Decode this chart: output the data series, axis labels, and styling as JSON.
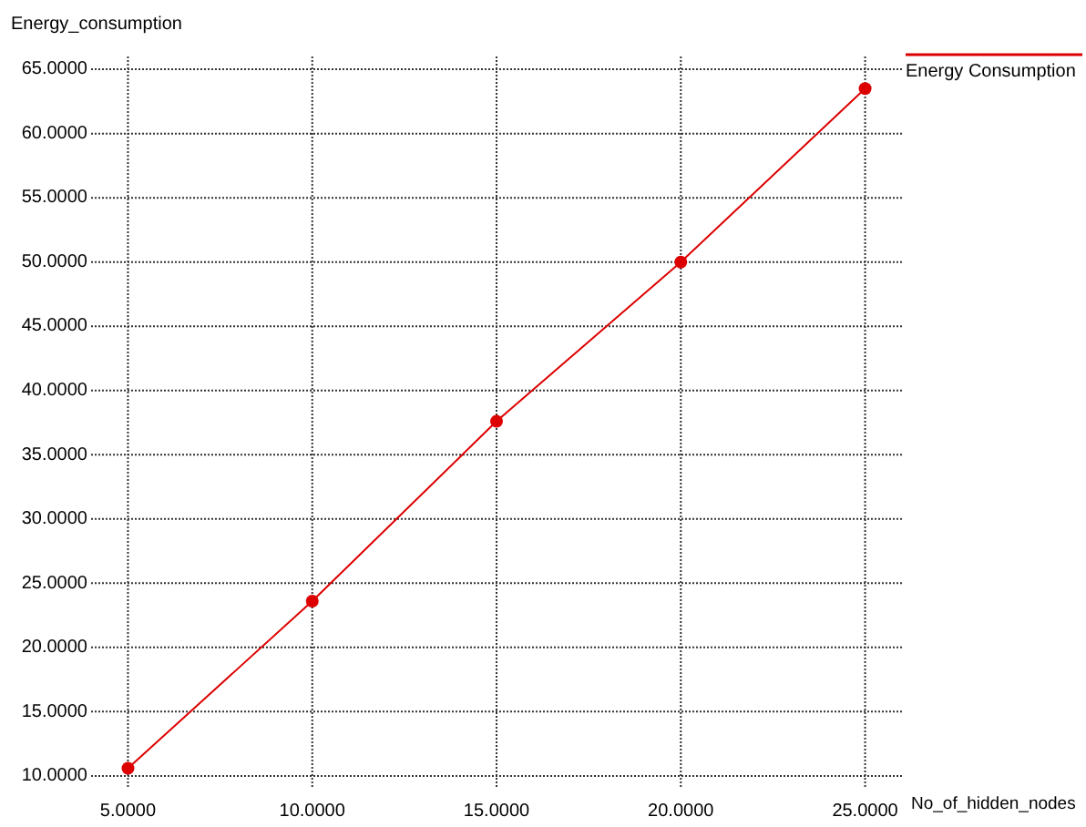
{
  "chart_data": {
    "type": "line",
    "xlabel": "No_of_hidden_nodes",
    "ylabel": "Energy_consumption",
    "x": [
      5,
      10,
      15,
      20,
      25
    ],
    "series": [
      {
        "name": "Energy Consumption",
        "color": "#dd0000",
        "values": [
          10.6,
          23.6,
          37.6,
          50.0,
          63.5
        ]
      }
    ],
    "xlim": [
      4,
      26
    ],
    "ylim": [
      9,
      66
    ],
    "xticks": [
      {
        "value": 5,
        "label": "5.0000"
      },
      {
        "value": 10,
        "label": "10.0000"
      },
      {
        "value": 15,
        "label": "15.0000"
      },
      {
        "value": 20,
        "label": "20.0000"
      },
      {
        "value": 25,
        "label": "25.0000"
      }
    ],
    "yticks": [
      {
        "value": 10,
        "label": "10.0000"
      },
      {
        "value": 15,
        "label": "15.0000"
      },
      {
        "value": 20,
        "label": "20.0000"
      },
      {
        "value": 25,
        "label": "25.0000"
      },
      {
        "value": 30,
        "label": "30.0000"
      },
      {
        "value": 35,
        "label": "35.0000"
      },
      {
        "value": 40,
        "label": "40.0000"
      },
      {
        "value": 45,
        "label": "45.0000"
      },
      {
        "value": 50,
        "label": "50.0000"
      },
      {
        "value": 55,
        "label": "55.0000"
      },
      {
        "value": 60,
        "label": "60.0000"
      },
      {
        "value": 65,
        "label": "65.0000"
      }
    ],
    "grid": true,
    "legend": "top right",
    "marker": "circle",
    "line_style": "solid"
  }
}
